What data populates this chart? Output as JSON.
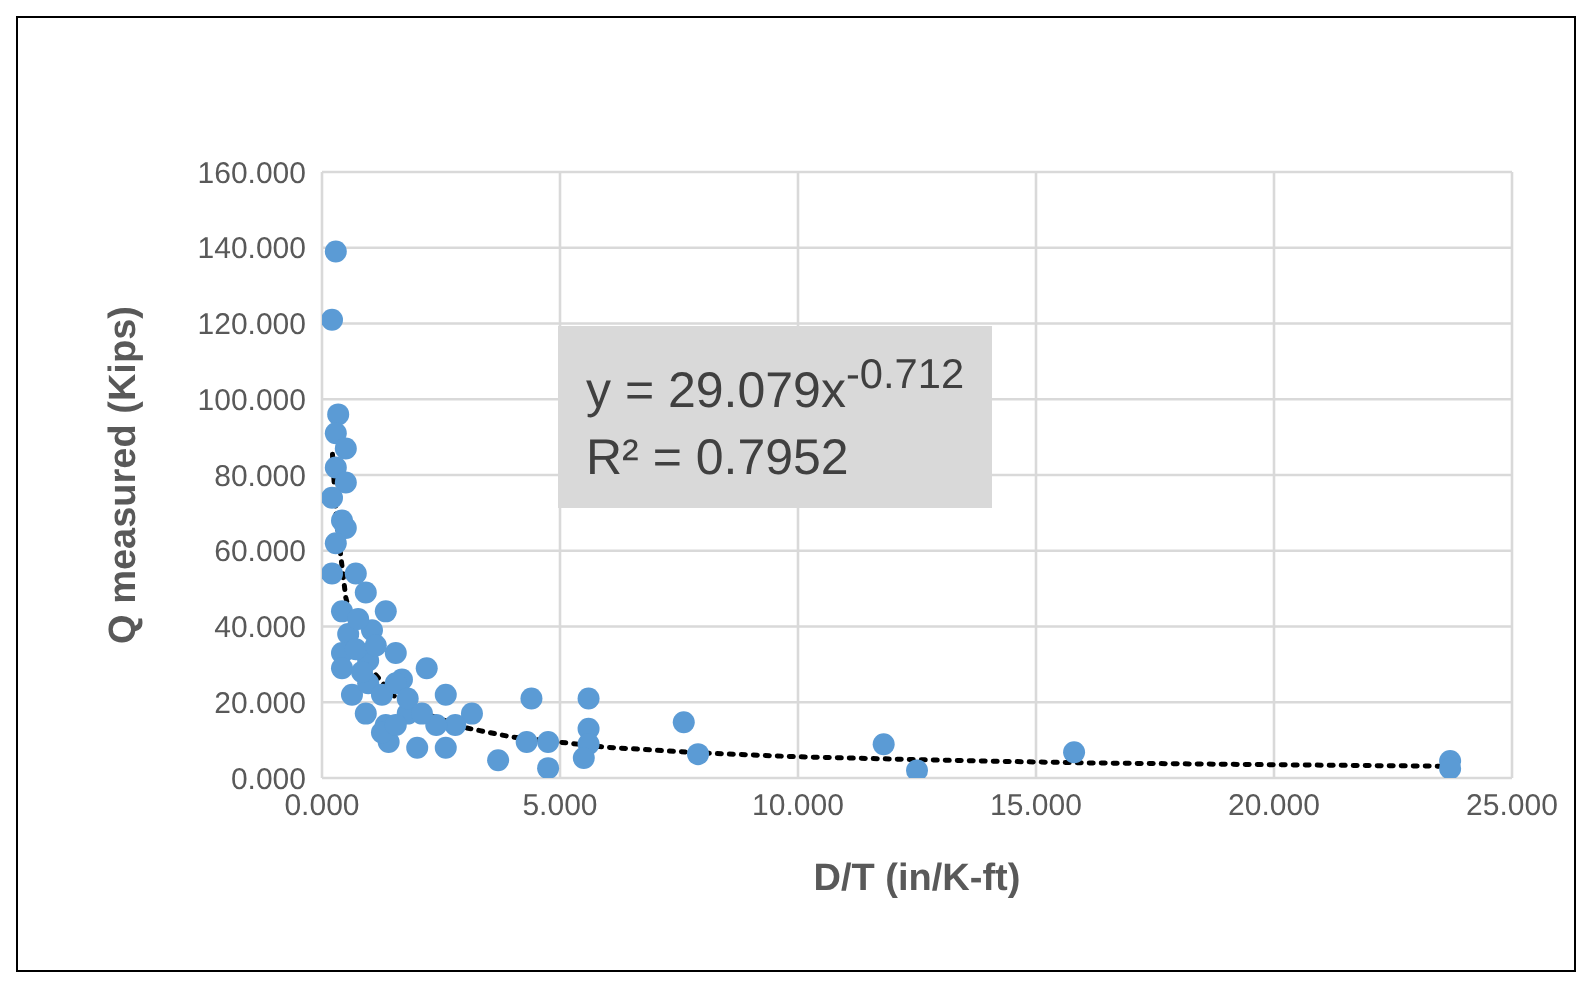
{
  "chart_data": {
    "type": "scatter",
    "xlabel": "D/T (in/K-ft)",
    "ylabel": "Q measured (Kips)",
    "xlim": [
      0,
      25
    ],
    "xticks": [
      {
        "value": 0,
        "label": "0.000"
      },
      {
        "value": 5,
        "label": "5.000"
      },
      {
        "value": 10,
        "label": "10.000"
      },
      {
        "value": 15,
        "label": "15.000"
      },
      {
        "value": 20,
        "label": "20.000"
      },
      {
        "value": 25,
        "label": "25.000"
      }
    ],
    "ylim": [
      0,
      160
    ],
    "yticks": [
      {
        "value": 0,
        "label": "0.000"
      },
      {
        "value": 20,
        "label": "20.000"
      },
      {
        "value": 40,
        "label": "40.000"
      },
      {
        "value": 60,
        "label": "60.000"
      },
      {
        "value": 80,
        "label": "80.000"
      },
      {
        "value": 100,
        "label": "100.000"
      },
      {
        "value": 120,
        "label": "120.000"
      },
      {
        "value": 140,
        "label": "140.000"
      },
      {
        "value": 160,
        "label": "160.000"
      }
    ],
    "grid": true,
    "legend": false,
    "annotations": [
      "y = 29.079x$^{-0.712}$",
      "R² = 0.7952"
    ],
    "series": [
      {
        "color": "#5b9bd5",
        "marker": "circle",
        "x": [
          0.29,
          0.21,
          0.34,
          0.29,
          0.5,
          0.29,
          0.5,
          0.21,
          0.42,
          0.5,
          0.29,
          0.21,
          0.71,
          0.92,
          1.34,
          0.42,
          0.55,
          1.05,
          1.55,
          0.42,
          0.42,
          0.97,
          2.2,
          1.68,
          0.63,
          0.97,
          1.26,
          2.6,
          0.92,
          1.8,
          3.15,
          1.34,
          2.8,
          1.4,
          2.0,
          2.6,
          1.26,
          2.4,
          0.71,
          1.13,
          0.76,
          1.55,
          1.8,
          0.84,
          1.55,
          2.1,
          3.7,
          4.4,
          4.3,
          4.75,
          4.75,
          5.6,
          5.6,
          5.6,
          5.5,
          7.6,
          7.9,
          11.8,
          12.5,
          15.8,
          23.7,
          23.7
        ],
        "values": [
          139,
          121,
          96,
          91,
          87,
          82,
          78,
          74,
          68,
          66,
          62,
          54,
          54,
          49,
          44,
          44,
          38,
          39,
          33,
          33,
          29,
          31,
          29,
          26,
          22,
          25,
          22,
          22,
          17,
          17,
          17,
          14,
          14,
          9.5,
          8,
          8,
          12,
          14,
          34,
          35,
          42,
          25,
          21,
          28,
          14,
          17,
          4.7,
          21,
          9.5,
          9.5,
          2.6,
          21,
          13,
          9,
          5.3,
          14.7,
          6.3,
          8.9,
          2,
          6.8,
          4.5,
          2.5
        ]
      },
      {
        "type": "line",
        "color": "#000000",
        "marker": "none",
        "line_style": "dotted",
        "x": [
          0.22,
          0.3,
          0.5,
          0.75,
          1,
          1.5,
          2,
          3,
          4,
          6,
          8,
          10,
          13,
          16,
          20,
          23.7
        ],
        "values": [
          85.5,
          68.5,
          47.6,
          35.7,
          29.1,
          21.8,
          17.8,
          13.3,
          10.8,
          8.1,
          6.6,
          5.6,
          4.7,
          4.0,
          3.5,
          3.1
        ]
      }
    ]
  }
}
